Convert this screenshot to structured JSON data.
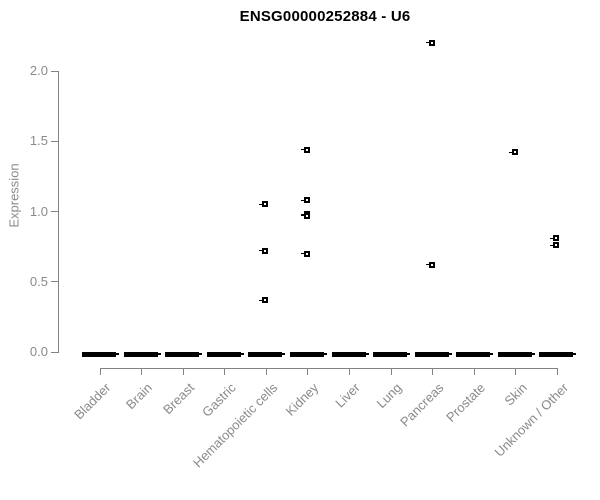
{
  "chart_data": {
    "type": "scatter",
    "subtype": "strip-plot",
    "title": "ENSG00000252884 - U6",
    "xlabel": "",
    "ylabel": "Expression",
    "ylim": [
      0,
      2.25
    ],
    "yticks": [
      "0.0",
      "0.5",
      "1.0",
      "1.5",
      "2.0"
    ],
    "grid": "off",
    "legend": "none",
    "marker": "open-square",
    "categories": [
      "Bladder",
      "Brain",
      "Breast",
      "Gastric",
      "Hematopoietic cells",
      "Kidney",
      "Liver",
      "Lung",
      "Pancreas",
      "Prostate",
      "Skin",
      "Unknown / Other"
    ],
    "series": [
      {
        "category": "Bladder",
        "values": [],
        "zero_cluster": true
      },
      {
        "category": "Brain",
        "values": [],
        "zero_cluster": true
      },
      {
        "category": "Breast",
        "values": [],
        "zero_cluster": true
      },
      {
        "category": "Gastric",
        "values": [],
        "zero_cluster": true
      },
      {
        "category": "Hematopoietic cells",
        "values": [
          1.05,
          0.72,
          0.37
        ],
        "zero_cluster": true
      },
      {
        "category": "Kidney",
        "values": [
          1.44,
          1.08,
          0.98,
          0.97,
          0.7
        ],
        "zero_cluster": true
      },
      {
        "category": "Liver",
        "values": [],
        "zero_cluster": true
      },
      {
        "category": "Lung",
        "values": [],
        "zero_cluster": true
      },
      {
        "category": "Pancreas",
        "values": [
          2.2,
          0.62
        ],
        "zero_cluster": true
      },
      {
        "category": "Prostate",
        "values": [],
        "zero_cluster": true
      },
      {
        "category": "Skin",
        "values": [
          1.42
        ],
        "zero_cluster": true
      },
      {
        "category": "Unknown / Other",
        "values": [
          0.81,
          0.76
        ],
        "zero_cluster": true
      }
    ],
    "zero_value": "0.0",
    "colors": {
      "marker": "#000000",
      "axis": "#828282",
      "tick_text": "#8a8a8a",
      "title_text": "#000000",
      "background": "#ffffff"
    }
  }
}
